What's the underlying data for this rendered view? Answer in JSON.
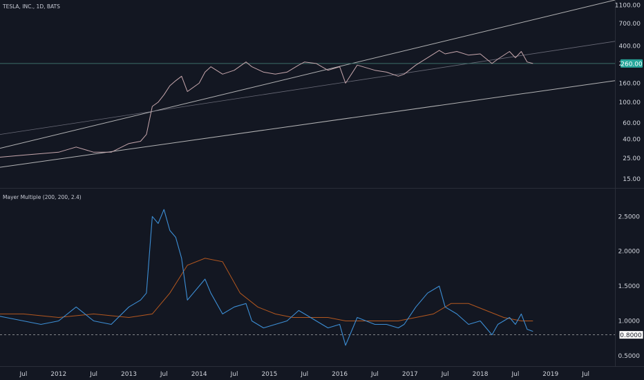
{
  "chart_data": [
    {
      "type": "line",
      "title": "TESLA, INC., 1D, BATS",
      "series": [
        {
          "name": "",
          "x": [
            "2011-01",
            "2011-04",
            "2011-07",
            "2011-10",
            "2012-01",
            "2012-04",
            "2012-07",
            "2012-10",
            "2013-01",
            "2013-03",
            "2013-04",
            "2013-05",
            "2013-06",
            "2013-07",
            "2013-08",
            "2013-09",
            "2013-10",
            "2013-11",
            "2014-01",
            "2014-02",
            "2014-03",
            "2014-05",
            "2014-07",
            "2014-09",
            "2014-10",
            "2014-12",
            "2015-02",
            "2015-04",
            "2015-06",
            "2015-07",
            "2015-09",
            "2015-11",
            "2016-01",
            "2016-02",
            "2016-04",
            "2016-07",
            "2016-09",
            "2016-11",
            "2016-12",
            "2017-02",
            "2017-04",
            "2017-06",
            "2017-07",
            "2017-09",
            "2017-11",
            "2018-01",
            "2018-03",
            "2018-04",
            "2018-06",
            "2018-07",
            "2018-08",
            "2018-09",
            "2018-10"
          ],
          "values": [
            25,
            26,
            27,
            28,
            29,
            33,
            29,
            29,
            36,
            38,
            45,
            90,
            100,
            120,
            150,
            170,
            190,
            130,
            160,
            210,
            240,
            200,
            220,
            270,
            240,
            210,
            200,
            210,
            250,
            270,
            260,
            220,
            240,
            160,
            250,
            220,
            210,
            190,
            200,
            250,
            300,
            360,
            330,
            350,
            320,
            330,
            260,
            290,
            350,
            300,
            350,
            270,
            260
          ]
        }
      ],
      "y_ticks": [
        "15.00",
        "25.00",
        "40.00",
        "60.00",
        "100.00",
        "160.00",
        "260.00",
        "400.00",
        "700.00",
        "1100.00"
      ],
      "last_price_label": "260.00",
      "scale": "log",
      "ylim": [
        12,
        1250
      ]
    },
    {
      "type": "line",
      "title": "Mayer Multiple (200, 200, 2.4)",
      "series": [
        {
          "name": "",
          "x": [
            "2011-01",
            "2011-04",
            "2011-07",
            "2011-10",
            "2012-01",
            "2012-04",
            "2012-07",
            "2012-10",
            "2013-01",
            "2013-03",
            "2013-04",
            "2013-05",
            "2013-06",
            "2013-07",
            "2013-08",
            "2013-09",
            "2013-10",
            "2013-11",
            "2014-01",
            "2014-02",
            "2014-03",
            "2014-05",
            "2014-07",
            "2014-09",
            "2014-10",
            "2014-12",
            "2015-02",
            "2015-04",
            "2015-06",
            "2015-07",
            "2015-09",
            "2015-11",
            "2016-01",
            "2016-02",
            "2016-04",
            "2016-07",
            "2016-09",
            "2016-11",
            "2016-12",
            "2017-02",
            "2017-04",
            "2017-06",
            "2017-07",
            "2017-09",
            "2017-11",
            "2018-01",
            "2018-03",
            "2018-04",
            "2018-06",
            "2018-07",
            "2018-08",
            "2018-09",
            "2018-10"
          ],
          "values": [
            1.1,
            1.05,
            1.0,
            0.95,
            1.0,
            1.2,
            1.0,
            0.95,
            1.2,
            1.3,
            1.4,
            2.5,
            2.4,
            2.6,
            2.3,
            2.2,
            1.9,
            1.3,
            1.5,
            1.6,
            1.4,
            1.1,
            1.2,
            1.25,
            1.0,
            0.9,
            0.95,
            1.0,
            1.15,
            1.1,
            1.0,
            0.9,
            0.95,
            0.65,
            1.05,
            0.95,
            0.95,
            0.9,
            0.95,
            1.2,
            1.4,
            1.5,
            1.2,
            1.1,
            0.95,
            1.0,
            0.8,
            0.95,
            1.05,
            0.95,
            1.1,
            0.88,
            0.85
          ]
        },
        {
          "name": "",
          "x": [
            "2011-01",
            "2011-07",
            "2012-01",
            "2012-07",
            "2013-01",
            "2013-05",
            "2013-08",
            "2013-11",
            "2014-02",
            "2014-05",
            "2014-08",
            "2014-11",
            "2015-02",
            "2015-05",
            "2015-08",
            "2015-11",
            "2016-02",
            "2016-05",
            "2016-08",
            "2016-11",
            "2017-02",
            "2017-05",
            "2017-08",
            "2017-11",
            "2018-02",
            "2018-05",
            "2018-08",
            "2018-10"
          ],
          "values": [
            1.1,
            1.1,
            1.05,
            1.1,
            1.05,
            1.1,
            1.4,
            1.8,
            1.9,
            1.85,
            1.4,
            1.2,
            1.1,
            1.05,
            1.05,
            1.05,
            1.0,
            1.0,
            1.0,
            1.0,
            1.05,
            1.1,
            1.25,
            1.25,
            1.15,
            1.05,
            1.0,
            1.0
          ]
        }
      ],
      "y_ticks": [
        "0.5000",
        "1.0000",
        "1.5000",
        "2.0000",
        "2.5000"
      ],
      "last_value_label": "0.8000",
      "reference_line": 0.8,
      "ylim": [
        0.35,
        2.9
      ]
    }
  ],
  "x_axis": {
    "ticks": [
      "Jul",
      "2012",
      "Jul",
      "2013",
      "Jul",
      "2014",
      "Jul",
      "2015",
      "Jul",
      "2016",
      "Jul",
      "2017",
      "Jul",
      "2018",
      "Jul",
      "2019",
      "Jul"
    ],
    "tick_dates": [
      "2011-07",
      "2012-01",
      "2012-07",
      "2013-01",
      "2013-07",
      "2014-01",
      "2014-07",
      "2015-01",
      "2015-07",
      "2016-01",
      "2016-07",
      "2017-01",
      "2017-07",
      "2018-01",
      "2018-07",
      "2019-01",
      "2019-07"
    ],
    "range": [
      "2011-03",
      "2019-12"
    ]
  },
  "colors": {
    "background": "#131722",
    "price_line": "#c7a7ad",
    "channel_upper": "#cfcfcf",
    "channel_mid": "#7a7a88",
    "channel_lower": "#cfcfcf",
    "price_hline": "#3c6e6a",
    "price_label_bg": "#26a69a",
    "mayer_line": "#3d8fd6",
    "mayer_ma": "#b5581f",
    "reference_line": "#cfcfcf"
  }
}
